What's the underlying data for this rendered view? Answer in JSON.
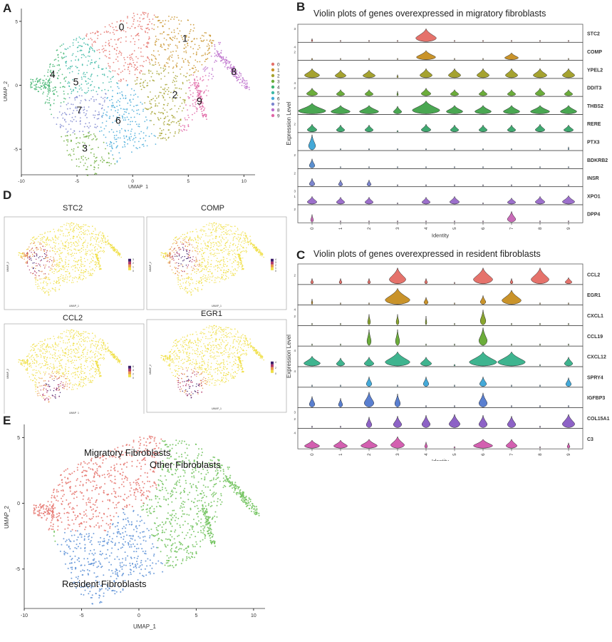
{
  "panels": {
    "a": "A",
    "b": "B",
    "c": "C",
    "d": "D",
    "e": "E"
  },
  "colors": {
    "clusters": [
      "#e5726b",
      "#c9932a",
      "#a5a22f",
      "#6cad3b",
      "#3fb46f",
      "#3db8a6",
      "#44a9d8",
      "#7c86cf",
      "#bc6fcb",
      "#e066a6"
    ],
    "groups": {
      "migratory": "#e5726b",
      "other": "#6ec25a",
      "resident": "#5b8fd6"
    },
    "feature_low": "#f2e63d",
    "feature_high": "#3d1f6b"
  },
  "chart_data": [
    {
      "id": "umap_clusters",
      "type": "scatter",
      "xlabel": "UMAP_1",
      "ylabel": "UMAP_2",
      "xlim": [
        -10,
        11
      ],
      "ylim": [
        -7,
        6
      ],
      "xticks": [
        "-10",
        "-5",
        "0",
        "5",
        "10"
      ],
      "yticks": [
        "5",
        "0",
        "-5"
      ],
      "legend_position": "right",
      "legend": [
        "0",
        "1",
        "2",
        "3",
        "4",
        "5",
        "6",
        "7",
        "8",
        "9"
      ],
      "cluster_labels": [
        {
          "label": "0",
          "x": -1.0,
          "y": 4.3
        },
        {
          "label": "1",
          "x": 4.7,
          "y": 3.4
        },
        {
          "label": "2",
          "x": 3.8,
          "y": -1.0
        },
        {
          "label": "3",
          "x": -4.3,
          "y": -5.2
        },
        {
          "label": "4",
          "x": -7.2,
          "y": 0.6
        },
        {
          "label": "5",
          "x": -5.1,
          "y": 0.0
        },
        {
          "label": "6",
          "x": -1.3,
          "y": -3.0
        },
        {
          "label": "7",
          "x": -4.8,
          "y": -2.2
        },
        {
          "label": "8",
          "x": 9.1,
          "y": 0.8
        },
        {
          "label": "9",
          "x": 6.0,
          "y": -1.5
        }
      ]
    },
    {
      "id": "violin_migratory",
      "type": "violin",
      "title": "Violin plots of genes overexpressed in migratory fibroblasts",
      "xlabel": "Identity",
      "ylabel": "Expression Level",
      "categories": [
        "0",
        "1",
        "2",
        "3",
        "4",
        "5",
        "6",
        "7",
        "8",
        "9"
      ],
      "genes": [
        {
          "name": "STC2",
          "color": "#e5726b",
          "tick_top": "3",
          "tick_mid": "",
          "widths": [
            0.05,
            0.03,
            0.03,
            0.02,
            0.75,
            0.02,
            0.02,
            0.03,
            0.03,
            0.03
          ],
          "heights": [
            0.2,
            0.1,
            0.1,
            0.1,
            0.85,
            0.1,
            0.1,
            0.1,
            0.1,
            0.1
          ]
        },
        {
          "name": "COMP",
          "color": "#c9932a",
          "tick_top": "4",
          "tick_mid": "2",
          "widths": [
            0.05,
            0.02,
            0.02,
            0.02,
            0.7,
            0.02,
            0.02,
            0.5,
            0.02,
            0.02
          ],
          "heights": [
            0.1,
            0.1,
            0.1,
            0.1,
            0.6,
            0.1,
            0.1,
            0.45,
            0.1,
            0.1
          ]
        },
        {
          "name": "YPEL2",
          "color": "#a5a22f",
          "tick_top": "",
          "tick_mid": "",
          "widths": [
            0.55,
            0.4,
            0.45,
            0.05,
            0.45,
            0.45,
            0.45,
            0.45,
            0.5,
            0.45
          ],
          "heights": [
            0.6,
            0.5,
            0.5,
            0.2,
            0.6,
            0.6,
            0.6,
            0.6,
            0.6,
            0.6
          ]
        },
        {
          "name": "DDIT3",
          "color": "#6cad3b",
          "tick_top": "4",
          "tick_mid": "2",
          "widths": [
            0.4,
            0.3,
            0.3,
            0.05,
            0.35,
            0.3,
            0.3,
            0.3,
            0.35,
            0.3
          ],
          "heights": [
            0.5,
            0.4,
            0.4,
            0.3,
            0.5,
            0.4,
            0.4,
            0.4,
            0.5,
            0.4
          ]
        },
        {
          "name": "THBS2",
          "color": "#4aa752",
          "tick_top": "",
          "tick_mid": "",
          "widths": [
            1.0,
            0.7,
            0.7,
            0.3,
            1.0,
            0.6,
            0.6,
            0.6,
            0.7,
            0.6
          ],
          "heights": [
            0.7,
            0.55,
            0.55,
            0.5,
            0.85,
            0.55,
            0.55,
            0.55,
            0.55,
            0.55
          ]
        },
        {
          "name": "RERE",
          "color": "#3fa870",
          "tick_top": "",
          "tick_mid": "2",
          "widths": [
            0.35,
            0.3,
            0.3,
            0.05,
            0.35,
            0.3,
            0.3,
            0.3,
            0.35,
            0.35
          ],
          "heights": [
            0.5,
            0.45,
            0.45,
            0.1,
            0.5,
            0.45,
            0.45,
            0.45,
            0.5,
            0.45
          ]
        },
        {
          "name": "PTX3",
          "color": "#44a9d8",
          "tick_top": "",
          "tick_mid": "",
          "widths": [
            0.25,
            0.02,
            0.02,
            0.02,
            0.02,
            0.02,
            0.02,
            0.02,
            0.02,
            0.02
          ],
          "heights": [
            1.0,
            0.1,
            0.1,
            0.1,
            0.1,
            0.1,
            0.1,
            0.1,
            0.1,
            0.2
          ]
        },
        {
          "name": "BDKRB2",
          "color": "#5a8fcf",
          "tick_top": "2",
          "tick_mid": "",
          "widths": [
            0.2,
            0.02,
            0.02,
            0.02,
            0.02,
            0.02,
            0.02,
            0.02,
            0.02,
            0.02
          ],
          "heights": [
            0.6,
            0.1,
            0.1,
            0.1,
            0.1,
            0.1,
            0.1,
            0.1,
            0.1,
            0.1
          ]
        },
        {
          "name": "INSR",
          "color": "#7c86cf",
          "tick_top": "2",
          "tick_mid": "",
          "widths": [
            0.2,
            0.15,
            0.15,
            0.02,
            0.02,
            0.02,
            0.02,
            0.02,
            0.02,
            0.02
          ],
          "heights": [
            0.5,
            0.4,
            0.4,
            0.1,
            0.1,
            0.1,
            0.1,
            0.1,
            0.1,
            0.1
          ]
        },
        {
          "name": "XPO1",
          "color": "#9c6fcb",
          "tick_top": "3",
          "tick_mid": "1",
          "widths": [
            0.35,
            0.3,
            0.3,
            0.02,
            0.3,
            0.35,
            0.02,
            0.3,
            0.35,
            0.45
          ],
          "heights": [
            0.5,
            0.45,
            0.45,
            0.1,
            0.45,
            0.5,
            0.1,
            0.4,
            0.5,
            0.55
          ]
        },
        {
          "name": "DPP4",
          "color": "#c96bb8",
          "tick_top": "2",
          "tick_mid": "",
          "widths": [
            0.1,
            0.02,
            0.02,
            0.02,
            0.02,
            0.02,
            0.02,
            0.3,
            0.02,
            0.02
          ],
          "heights": [
            0.5,
            0.1,
            0.1,
            0.1,
            0.1,
            0.1,
            0.1,
            0.7,
            0.1,
            0.1
          ]
        }
      ]
    },
    {
      "id": "violin_resident",
      "type": "violin",
      "title": "Violin plots of genes overexpressed in resident fibroblasts",
      "xlabel": "Identity",
      "ylabel": "Expression Level",
      "categories": [
        "0",
        "1",
        "2",
        "3",
        "4",
        "5",
        "6",
        "7",
        "8",
        "9"
      ],
      "genes": [
        {
          "name": "CCL2",
          "color": "#e5726b",
          "tick_top": "",
          "tick_mid": "2",
          "widths": [
            0.1,
            0.1,
            0.1,
            0.6,
            0.1,
            0.02,
            0.7,
            0.1,
            0.65,
            0.25
          ],
          "heights": [
            0.3,
            0.3,
            0.3,
            0.9,
            0.3,
            0.1,
            0.9,
            0.3,
            0.9,
            0.35
          ]
        },
        {
          "name": "EGR1",
          "color": "#c9932a",
          "tick_top": "",
          "tick_mid": "",
          "widths": [
            0.05,
            0.02,
            0.02,
            0.9,
            0.15,
            0.02,
            0.2,
            0.7,
            0.02,
            0.02
          ],
          "heights": [
            0.3,
            0.1,
            0.1,
            0.9,
            0.4,
            0.1,
            0.5,
            0.8,
            0.1,
            0.1
          ]
        },
        {
          "name": "CXCL1",
          "color": "#8aa52f",
          "tick_top": "4",
          "tick_mid": "2",
          "widths": [
            0.02,
            0.02,
            0.1,
            0.1,
            0.05,
            0.02,
            0.2,
            0.02,
            0.02,
            0.02
          ],
          "heights": [
            0.1,
            0.1,
            0.6,
            0.6,
            0.5,
            0.1,
            0.85,
            0.1,
            0.1,
            0.1
          ]
        },
        {
          "name": "CCL19",
          "color": "#6cad3b",
          "tick_top": "",
          "tick_mid": "",
          "widths": [
            0.02,
            0.02,
            0.15,
            0.15,
            0.02,
            0.02,
            0.3,
            0.02,
            0.02,
            0.02
          ],
          "heights": [
            0.1,
            0.1,
            0.9,
            0.9,
            0.1,
            0.1,
            1.0,
            0.1,
            0.1,
            0.1
          ]
        },
        {
          "name": "CXCL12",
          "color": "#3fb48f",
          "tick_top": "4",
          "tick_mid": "",
          "widths": [
            0.6,
            0.3,
            0.35,
            0.9,
            0.4,
            0.05,
            1.0,
            1.0,
            0.02,
            0.3
          ],
          "heights": [
            0.55,
            0.45,
            0.5,
            0.8,
            0.5,
            0.1,
            0.8,
            0.8,
            0.1,
            0.5
          ]
        },
        {
          "name": "SPRY4",
          "color": "#44a9d8",
          "tick_top": "4",
          "tick_mid": "",
          "widths": [
            0.02,
            0.02,
            0.2,
            0.02,
            0.2,
            0.02,
            0.25,
            0.02,
            0.02,
            0.2
          ],
          "heights": [
            0.1,
            0.1,
            0.55,
            0.1,
            0.55,
            0.1,
            0.55,
            0.1,
            0.1,
            0.5
          ]
        },
        {
          "name": "IGFBP3",
          "color": "#5a7fd0",
          "tick_top": "",
          "tick_mid": "",
          "widths": [
            0.2,
            0.15,
            0.35,
            0.2,
            0.02,
            0.02,
            0.3,
            0.02,
            0.02,
            0.02
          ],
          "heights": [
            0.6,
            0.5,
            0.85,
            0.75,
            0.1,
            0.1,
            0.8,
            0.1,
            0.1,
            0.1
          ]
        },
        {
          "name": "COL15A1",
          "color": "#8d62c6",
          "tick_top": "3",
          "tick_mid": "2",
          "widths": [
            0.02,
            0.02,
            0.2,
            0.3,
            0.3,
            0.4,
            0.3,
            0.3,
            0.02,
            0.45
          ],
          "heights": [
            0.1,
            0.1,
            0.6,
            0.65,
            0.7,
            0.75,
            0.7,
            0.65,
            0.1,
            0.75
          ]
        },
        {
          "name": "C3",
          "color": "#d35fb0",
          "tick_top": "4",
          "tick_mid": "",
          "widths": [
            0.55,
            0.5,
            0.6,
            0.5,
            0.1,
            0.05,
            0.7,
            0.4,
            0.02,
            0.1
          ],
          "heights": [
            0.45,
            0.45,
            0.5,
            0.65,
            0.35,
            0.1,
            0.5,
            0.5,
            0.1,
            0.3
          ]
        }
      ]
    },
    {
      "id": "feature_plots",
      "type": "scatter",
      "features": [
        {
          "name": "STC2",
          "legend": [
            "3",
            "2",
            "1",
            "0"
          ]
        },
        {
          "name": "COMP",
          "legend": [
            "4",
            "3",
            "2",
            "1",
            "0"
          ]
        },
        {
          "name": "CCL2",
          "legend": [
            "6",
            "4",
            "2",
            "0"
          ]
        },
        {
          "name": "EGR1",
          "legend": [
            "4",
            "2",
            "0"
          ]
        }
      ],
      "xlabel": "UMAP_1",
      "ylabel": "UMAP_2"
    },
    {
      "id": "umap_groups",
      "type": "scatter",
      "xlabel": "UMAP_1",
      "ylabel": "UMAP_2",
      "xlim": [
        -10,
        11
      ],
      "ylim": [
        -8,
        6
      ],
      "xticks": [
        "-10",
        "-5",
        "0",
        "5",
        "10"
      ],
      "yticks": [
        "5",
        "0",
        "-5"
      ],
      "annotations": [
        "Migratory Fibroblasts",
        "Other Fibroblasts",
        "Resident Fibroblasts"
      ]
    }
  ]
}
